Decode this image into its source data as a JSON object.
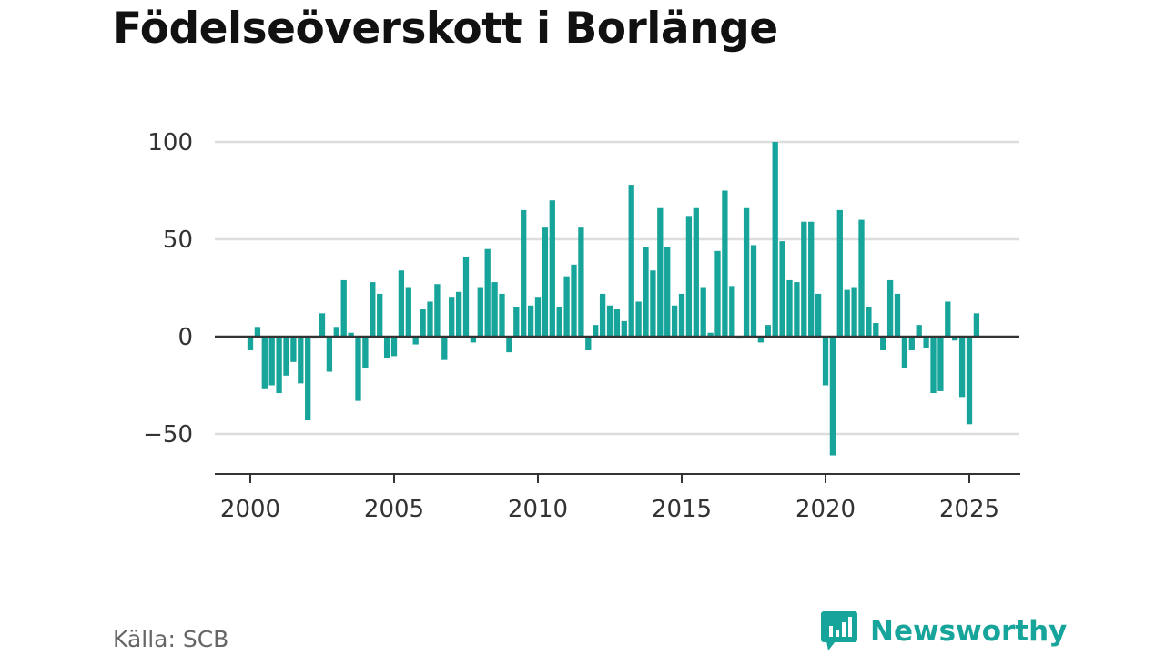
{
  "title": "Födelseöverskott i Borlänge",
  "source": "Källa: SCB",
  "brand": "Newsworthy",
  "colors": {
    "bar": "#17a49b",
    "grid": "#dddddd",
    "zero": "#333333",
    "title": "#111111",
    "brand": "#17a49b"
  },
  "logo_icon": "chat-bubble-bar-chart-icon",
  "chart_data": {
    "type": "bar",
    "title": "Födelseöverskott i Borlänge",
    "xlabel": "",
    "ylabel": "",
    "frequency": "quarterly",
    "ylim": [
      -66,
      100
    ],
    "yticks": [
      100,
      50,
      0,
      -50
    ],
    "ytick_labels": [
      "100",
      "50",
      "0",
      "−50"
    ],
    "xlim": [
      1998.8,
      2026.8
    ],
    "xticks": [
      "2000",
      "2005",
      "2010",
      "2015",
      "2020",
      "2025"
    ],
    "grid": true,
    "legend": "none",
    "series": [
      {
        "values": [
          -7,
          5,
          -27,
          -25,
          -29,
          -20,
          -13,
          -24,
          -43,
          -1,
          12,
          -18,
          5,
          29,
          2,
          -33,
          -16,
          28,
          22,
          -11,
          -10,
          34,
          25,
          -4,
          14,
          18,
          27,
          -12,
          20,
          23,
          41,
          -3,
          25,
          45,
          28,
          22,
          -8,
          15,
          65,
          16,
          20,
          56,
          70,
          15,
          31,
          37,
          56,
          -7,
          6,
          22,
          16,
          14,
          8,
          78,
          18,
          46,
          34,
          66,
          46,
          16,
          22,
          62,
          66,
          25,
          2,
          44,
          75,
          26,
          -1,
          66,
          47,
          -3,
          6,
          100,
          49,
          29,
          28,
          59,
          59,
          22,
          -25,
          -61,
          65,
          24,
          25,
          60,
          15,
          7,
          -7,
          29,
          22,
          -16,
          -7,
          6,
          -6,
          -29,
          -28,
          18,
          -2,
          -31,
          -45,
          12
        ]
      }
    ],
    "first_period": "2000 Q1"
  }
}
